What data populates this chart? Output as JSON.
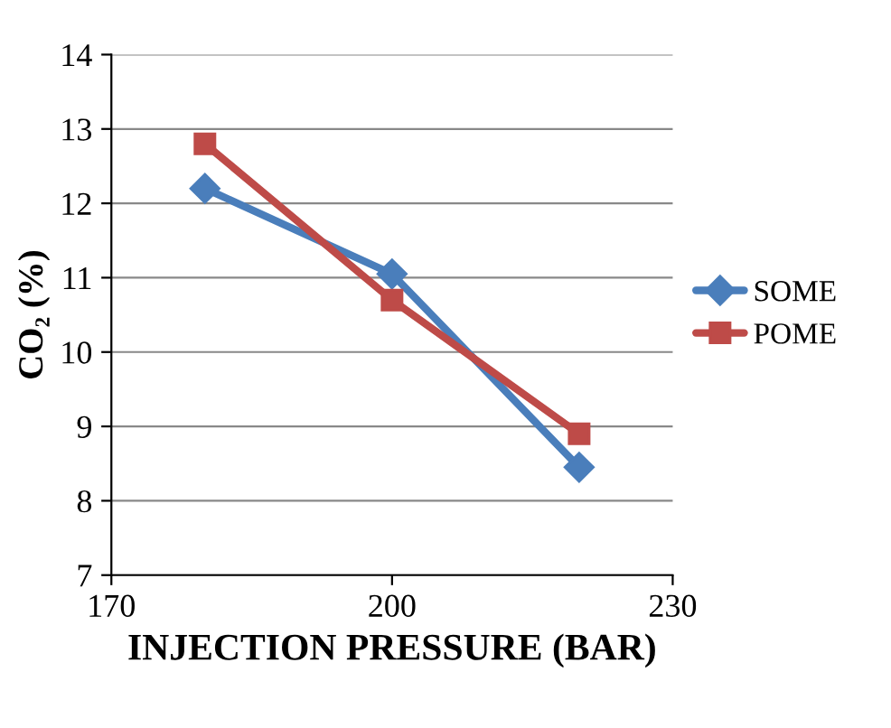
{
  "chart_data": {
    "type": "line",
    "xlabel": "INJECTION PRESSURE (BAR)",
    "ylabel": "CO₂ (%)",
    "x": [
      180,
      200,
      220
    ],
    "series": [
      {
        "name": "SOME",
        "color": "#4a7ebb",
        "values": [
          12.2,
          11.05,
          8.45
        ],
        "marker": "diamond"
      },
      {
        "name": "POME",
        "color": "#be4b48",
        "values": [
          12.8,
          10.7,
          8.9
        ],
        "marker": "square"
      }
    ],
    "xlim": [
      170,
      230
    ],
    "xticks": [
      170,
      200,
      230
    ],
    "ylim": [
      7,
      14
    ],
    "yticks": [
      7,
      8,
      9,
      10,
      11,
      12,
      13,
      14
    ],
    "grid": "y",
    "legend": "right",
    "line_style": "solid"
  }
}
